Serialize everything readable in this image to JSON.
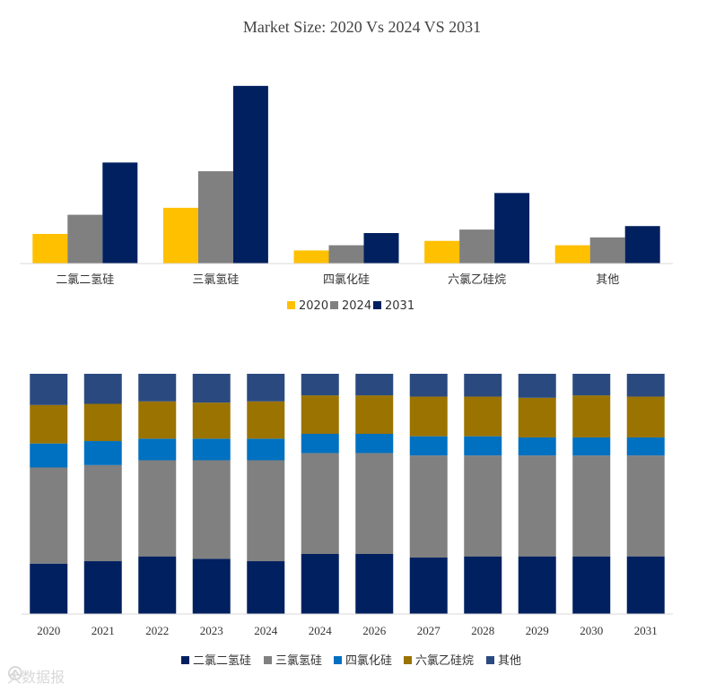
{
  "title": "Market Size: 2020 Vs 2024 VS 2031",
  "colors": {
    "c2020": "#FFC000",
    "c2024": "#808080",
    "c2031": "#002060",
    "s1": "#002060",
    "s2": "#808080",
    "s3": "#0070C0",
    "s4": "#9A7300",
    "s5": "#2A4A7F"
  },
  "chart_data": [
    {
      "type": "bar",
      "title": "Market Size: 2020 Vs 2024 VS 2031",
      "categories": [
        "二氯二氢硅",
        "三氯氢硅",
        "四氯化硅",
        "六氯乙硅烷",
        "其他"
      ],
      "series": [
        {
          "name": "2020",
          "values": [
            34,
            64,
            15,
            26,
            21
          ]
        },
        {
          "name": "2024",
          "values": [
            56,
            106,
            21,
            39,
            30
          ]
        },
        {
          "name": "2031",
          "values": [
            116,
            204,
            35,
            81,
            43
          ]
        }
      ],
      "ylim": [
        0,
        210
      ],
      "legend": "bottom-center",
      "grid": false
    },
    {
      "type": "bar",
      "stacked": "percent",
      "categories": [
        "2020",
        "2021",
        "2022",
        "2023",
        "2024",
        "2024",
        "2026",
        "2027",
        "2028",
        "2029",
        "2030",
        "2031"
      ],
      "series": [
        {
          "name": "二氯二氢硅",
          "values": [
            21,
            22,
            24,
            23,
            22,
            25,
            25,
            23.5,
            24,
            24,
            24,
            24
          ]
        },
        {
          "name": "三氯氢硅",
          "values": [
            40,
            40,
            40,
            41,
            42,
            42,
            42,
            42.5,
            42,
            42,
            42,
            42
          ]
        },
        {
          "name": "四氯化硅",
          "values": [
            10,
            10,
            9,
            9,
            9,
            8,
            8,
            8,
            8,
            7.5,
            7.5,
            7.5
          ]
        },
        {
          "name": "六氯乙硅烷",
          "values": [
            16,
            15.5,
            15.5,
            15,
            15.5,
            16,
            16,
            16.5,
            16.5,
            16.5,
            17.5,
            17
          ]
        },
        {
          "name": "其他",
          "values": [
            13,
            12.5,
            11.5,
            12,
            11.5,
            9,
            9,
            9.5,
            9.5,
            10,
            9,
            9.5
          ]
        }
      ],
      "ylim": [
        0,
        100
      ],
      "legend": "bottom-center",
      "grid": false
    }
  ],
  "watermark": "大数据报"
}
